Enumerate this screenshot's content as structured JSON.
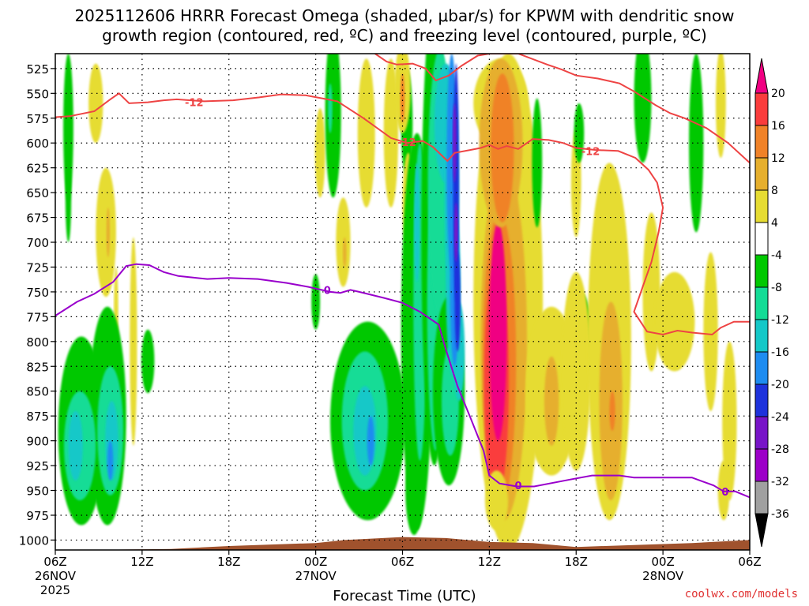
{
  "chart_data": {
    "type": "heatmap",
    "title_line1": "2025112606 HRRR Forecast Omega (shaded, μbar/s) for KPWM with dendritic snow",
    "title_line2": "growth region (contoured, red, ºC) and freezing level (contoured, purple, ºC)",
    "xlabel": "Forecast Time (UTC)",
    "credit": "coolwx.com/models",
    "x_range_hours": [
      0,
      48
    ],
    "y_range_mb": [
      1010,
      510
    ],
    "y_ticks": [
      {
        "value": 525,
        "label": "525"
      },
      {
        "value": 550,
        "label": "550"
      },
      {
        "value": 575,
        "label": "575"
      },
      {
        "value": 600,
        "label": "600"
      },
      {
        "value": 625,
        "label": "625"
      },
      {
        "value": 650,
        "label": "650"
      },
      {
        "value": 675,
        "label": "675"
      },
      {
        "value": 700,
        "label": "700"
      },
      {
        "value": 725,
        "label": "725"
      },
      {
        "value": 750,
        "label": "750"
      },
      {
        "value": 775,
        "label": "775"
      },
      {
        "value": 800,
        "label": "800"
      },
      {
        "value": 825,
        "label": "825"
      },
      {
        "value": 850,
        "label": "850"
      },
      {
        "value": 875,
        "label": "875"
      },
      {
        "value": 900,
        "label": "900"
      },
      {
        "value": 925,
        "label": "925"
      },
      {
        "value": 950,
        "label": "950"
      },
      {
        "value": 975,
        "label": "975"
      },
      {
        "value": 1000,
        "label": "1000"
      }
    ],
    "x_ticks": [
      {
        "hour": 0,
        "label": "06Z",
        "date": "26NOV",
        "year": "2025"
      },
      {
        "hour": 6,
        "label": "12Z"
      },
      {
        "hour": 12,
        "label": "18Z"
      },
      {
        "hour": 18,
        "label": "00Z",
        "date": "27NOV"
      },
      {
        "hour": 24,
        "label": "06Z"
      },
      {
        "hour": 30,
        "label": "12Z"
      },
      {
        "hour": 36,
        "label": "18Z"
      },
      {
        "hour": 42,
        "label": "00Z",
        "date": "28NOV"
      },
      {
        "hour": 48,
        "label": "06Z"
      }
    ],
    "colorbar": {
      "bins": [
        {
          "lo": -40,
          "hi": -36,
          "color": "#000000"
        },
        {
          "lo": -36,
          "hi": -32,
          "color": "#a0a0a0"
        },
        {
          "lo": -32,
          "hi": -28,
          "color": "#9c00c8"
        },
        {
          "lo": -28,
          "hi": -24,
          "color": "#7814c8"
        },
        {
          "lo": -24,
          "hi": -20,
          "color": "#1e32dc"
        },
        {
          "lo": -20,
          "hi": -16,
          "color": "#1e8cf0"
        },
        {
          "lo": -16,
          "hi": -12,
          "color": "#14c8c8"
        },
        {
          "lo": -12,
          "hi": -8,
          "color": "#14dc96"
        },
        {
          "lo": -8,
          "hi": -4,
          "color": "#00c800"
        },
        {
          "lo": -4,
          "hi": 4,
          "color": "#ffffff"
        },
        {
          "lo": 4,
          "hi": 8,
          "color": "#e6dc32"
        },
        {
          "lo": 8,
          "hi": 12,
          "color": "#e6af2d"
        },
        {
          "lo": 12,
          "hi": 16,
          "color": "#f08228"
        },
        {
          "lo": 16,
          "hi": 20,
          "color": "#fa3c3c"
        },
        {
          "lo": 20,
          "hi": 24,
          "color": "#f00082"
        }
      ],
      "labels": [
        "20",
        "16",
        "12",
        "8",
        "4",
        "-4",
        "-8",
        "-12",
        "-16",
        "-20",
        "-24",
        "-28",
        "-32",
        "-36"
      ]
    },
    "omega_cells": [
      {
        "x": 0.9,
        "p": 585,
        "rx": 0.35,
        "rp": 75,
        "v": -5
      },
      {
        "x": 0.9,
        "p": 655,
        "rx": 0.2,
        "rp": 45,
        "v": -5
      },
      {
        "x": 2.8,
        "p": 560,
        "rx": 0.5,
        "rp": 40,
        "v": 5
      },
      {
        "x": 3.5,
        "p": 690,
        "rx": 0.7,
        "rp": 65,
        "v": 5
      },
      {
        "x": 3.65,
        "p": 690,
        "rx": 0.12,
        "rp": 25,
        "v": 9
      },
      {
        "x": 4.2,
        "p": 770,
        "rx": 0.15,
        "rp": 45,
        "v": 5
      },
      {
        "x": 5.4,
        "p": 800,
        "rx": 0.25,
        "rp": 105,
        "v": 5
      },
      {
        "x": 6.4,
        "p": 820,
        "rx": 0.45,
        "rp": 32,
        "v": -5
      },
      {
        "x": 1.8,
        "p": 890,
        "rx": 1.6,
        "rp": 95,
        "v": -6
      },
      {
        "x": 3.6,
        "p": 875,
        "rx": 1.3,
        "rp": 110,
        "v": -6
      },
      {
        "x": 1.7,
        "p": 905,
        "rx": 1.1,
        "rp": 55,
        "v": -10
      },
      {
        "x": 3.8,
        "p": 890,
        "rx": 0.9,
        "rp": 65,
        "v": -10
      },
      {
        "x": 1.4,
        "p": 905,
        "rx": 0.5,
        "rp": 35,
        "v": -14
      },
      {
        "x": 3.9,
        "p": 900,
        "rx": 0.45,
        "rp": 40,
        "v": -14
      },
      {
        "x": 3.8,
        "p": 920,
        "rx": 0.2,
        "rp": 20,
        "v": -18
      },
      {
        "x": 18.3,
        "p": 610,
        "rx": 0.35,
        "rp": 45,
        "v": 5
      },
      {
        "x": 19.2,
        "p": 570,
        "rx": 0.55,
        "rp": 85,
        "v": -5
      },
      {
        "x": 19.0,
        "p": 565,
        "rx": 0.15,
        "rp": 25,
        "v": -10
      },
      {
        "x": 19.9,
        "p": 700,
        "rx": 0.5,
        "rp": 45,
        "v": 5
      },
      {
        "x": 20.0,
        "p": 710,
        "rx": 0.12,
        "rp": 15,
        "v": 9
      },
      {
        "x": 18.0,
        "p": 760,
        "rx": 0.3,
        "rp": 28,
        "v": -5
      },
      {
        "x": 21.5,
        "p": 590,
        "rx": 0.6,
        "rp": 75,
        "v": 5
      },
      {
        "x": 23.2,
        "p": 590,
        "rx": 0.5,
        "rp": 75,
        "v": 5
      },
      {
        "x": 21.6,
        "p": 880,
        "rx": 2.6,
        "rp": 100,
        "v": -6
      },
      {
        "x": 21.4,
        "p": 880,
        "rx": 1.6,
        "rp": 70,
        "v": -10
      },
      {
        "x": 21.4,
        "p": 890,
        "rx": 0.8,
        "rp": 45,
        "v": -14
      },
      {
        "x": 21.8,
        "p": 900,
        "rx": 0.25,
        "rp": 25,
        "v": -18
      },
      {
        "x": 24.3,
        "p": 580,
        "rx": 0.4,
        "rp": 55,
        "v": -5
      },
      {
        "x": 24.0,
        "p": 545,
        "rx": 0.55,
        "rp": 45,
        "v": 5
      },
      {
        "x": 24.0,
        "p": 555,
        "rx": 0.15,
        "rp": 25,
        "v": 13
      },
      {
        "x": 24.4,
        "p": 660,
        "rx": 0.4,
        "rp": 50,
        "v": 5
      },
      {
        "x": 25.0,
        "p": 790,
        "rx": 1.1,
        "rp": 200,
        "v": -6
      },
      {
        "x": 24.8,
        "p": 950,
        "rx": 0.6,
        "rp": 45,
        "v": -5
      },
      {
        "x": 25.2,
        "p": 760,
        "rx": 0.45,
        "rp": 160,
        "v": -10
      },
      {
        "x": 25.0,
        "p": 680,
        "rx": 0.2,
        "rp": 60,
        "v": -14
      },
      {
        "x": 26.2,
        "p": 690,
        "rx": 0.9,
        "rp": 235,
        "v": -6
      },
      {
        "x": 26.3,
        "p": 760,
        "rx": 0.6,
        "rp": 150,
        "v": -10
      },
      {
        "x": 26.6,
        "p": 640,
        "rx": 0.85,
        "rp": 135,
        "v": -10
      },
      {
        "x": 27.2,
        "p": 850,
        "rx": 1.1,
        "rp": 95,
        "v": -6
      },
      {
        "x": 27.3,
        "p": 860,
        "rx": 0.6,
        "rp": 55,
        "v": -10
      },
      {
        "x": 27.0,
        "p": 580,
        "rx": 0.8,
        "rp": 60,
        "v": -14
      },
      {
        "x": 27.4,
        "p": 650,
        "rx": 0.5,
        "rp": 120,
        "v": -14
      },
      {
        "x": 27.5,
        "p": 745,
        "rx": 0.5,
        "rp": 90,
        "v": -14
      },
      {
        "x": 27.9,
        "p": 810,
        "rx": 0.4,
        "rp": 50,
        "v": -14
      },
      {
        "x": 27.4,
        "p": 620,
        "rx": 0.35,
        "rp": 110,
        "v": -18
      },
      {
        "x": 27.6,
        "p": 740,
        "rx": 0.32,
        "rp": 85,
        "v": -18
      },
      {
        "x": 27.7,
        "p": 640,
        "rx": 0.2,
        "rp": 120,
        "v": -22
      },
      {
        "x": 27.8,
        "p": 760,
        "rx": 0.2,
        "rp": 50,
        "v": -22
      },
      {
        "x": 27.6,
        "p": 600,
        "rx": 0.12,
        "rp": 40,
        "v": -26
      },
      {
        "x": 27.7,
        "p": 690,
        "rx": 0.12,
        "rp": 30,
        "v": -26
      },
      {
        "x": 31.3,
        "p": 760,
        "rx": 2.4,
        "rp": 250,
        "v": 5
      },
      {
        "x": 31.0,
        "p": 800,
        "rx": 1.6,
        "rp": 180,
        "v": 9
      },
      {
        "x": 30.7,
        "p": 820,
        "rx": 1.15,
        "rp": 150,
        "v": 13
      },
      {
        "x": 30.5,
        "p": 840,
        "rx": 0.85,
        "rp": 120,
        "v": 17
      },
      {
        "x": 30.6,
        "p": 790,
        "rx": 0.6,
        "rp": 110,
        "v": 22
      },
      {
        "x": 30.8,
        "p": 560,
        "rx": 1.9,
        "rp": 45,
        "v": 5
      },
      {
        "x": 30.8,
        "p": 600,
        "rx": 1.5,
        "rp": 85,
        "v": 9
      },
      {
        "x": 30.9,
        "p": 605,
        "rx": 0.8,
        "rp": 75,
        "v": 13
      },
      {
        "x": 30.5,
        "p": 960,
        "rx": 0.8,
        "rp": 30,
        "v": 5
      },
      {
        "x": 33.3,
        "p": 620,
        "rx": 0.35,
        "rp": 65,
        "v": -5
      },
      {
        "x": 34.3,
        "p": 850,
        "rx": 1.8,
        "rp": 85,
        "v": 5
      },
      {
        "x": 34.3,
        "p": 860,
        "rx": 0.5,
        "rp": 45,
        "v": 9
      },
      {
        "x": 36.0,
        "p": 640,
        "rx": 0.35,
        "rp": 55,
        "v": 5
      },
      {
        "x": 36.2,
        "p": 590,
        "rx": 0.35,
        "rp": 30,
        "v": -5
      },
      {
        "x": 36.3,
        "p": 800,
        "rx": 0.8,
        "rp": 50,
        "v": -5
      },
      {
        "x": 36.0,
        "p": 830,
        "rx": 1.0,
        "rp": 100,
        "v": 5
      },
      {
        "x": 38.3,
        "p": 800,
        "rx": 1.5,
        "rp": 180,
        "v": 5
      },
      {
        "x": 38.4,
        "p": 860,
        "rx": 0.8,
        "rp": 100,
        "v": 9
      },
      {
        "x": 38.5,
        "p": 870,
        "rx": 0.2,
        "rp": 20,
        "v": 13
      },
      {
        "x": 41.2,
        "p": 750,
        "rx": 0.6,
        "rp": 80,
        "v": 5
      },
      {
        "x": 40.6,
        "p": 555,
        "rx": 0.6,
        "rp": 65,
        "v": -5
      },
      {
        "x": 44.3,
        "p": 600,
        "rx": 0.5,
        "rp": 90,
        "v": -5
      },
      {
        "x": 46.0,
        "p": 560,
        "rx": 0.35,
        "rp": 55,
        "v": 5
      },
      {
        "x": 42.8,
        "p": 780,
        "rx": 1.4,
        "rp": 50,
        "v": 5
      },
      {
        "x": 45.3,
        "p": 790,
        "rx": 0.5,
        "rp": 80,
        "v": 5
      },
      {
        "x": 46.6,
        "p": 880,
        "rx": 0.5,
        "rp": 80,
        "v": 5
      },
      {
        "x": 46.2,
        "p": 950,
        "rx": 0.4,
        "rp": 30,
        "v": 5
      }
    ],
    "isotherm_minus12": {
      "label": "-12",
      "points": [
        [
          0,
          574
        ],
        [
          1,
          573
        ],
        [
          2.7,
          568
        ],
        [
          3.8,
          556
        ],
        [
          4.4,
          550
        ],
        [
          5.1,
          560
        ],
        [
          6.4,
          559
        ],
        [
          7.5,
          557
        ],
        [
          8.4,
          556
        ],
        [
          10.3,
          558
        ],
        [
          12.3,
          557
        ],
        [
          14.1,
          554
        ],
        [
          15.6,
          551
        ],
        [
          17.3,
          552
        ],
        [
          18.8,
          556
        ],
        [
          19.5,
          558
        ],
        [
          21.3,
          575
        ],
        [
          23.2,
          595
        ],
        [
          24.3,
          600
        ],
        [
          25.4,
          598
        ],
        [
          26.1,
          604
        ],
        [
          27.1,
          618
        ],
        [
          27.6,
          610
        ],
        [
          28.7,
          607
        ],
        [
          29.4,
          605
        ],
        [
          30.0,
          602
        ],
        [
          30.6,
          606
        ],
        [
          31.2,
          603
        ],
        [
          32.0,
          606
        ],
        [
          33.0,
          596
        ],
        [
          34.1,
          597
        ],
        [
          35.1,
          600
        ],
        [
          36.0,
          605
        ],
        [
          37.3,
          607
        ],
        [
          38.9,
          608
        ],
        [
          40.1,
          615
        ],
        [
          41.0,
          627
        ],
        [
          41.6,
          640
        ],
        [
          42.0,
          665
        ],
        [
          41.7,
          690
        ],
        [
          41.2,
          720
        ],
        [
          40.6,
          745
        ],
        [
          40.0,
          770
        ],
        [
          40.9,
          790
        ],
        [
          42.0,
          793
        ],
        [
          43.0,
          789
        ],
        [
          44.0,
          791
        ],
        [
          45.4,
          793
        ],
        [
          46.0,
          786
        ],
        [
          46.9,
          780
        ],
        [
          48,
          780
        ]
      ],
      "label_positions": [
        [
          9.6,
          559
        ],
        [
          24.3,
          599
        ],
        [
          37.0,
          608
        ]
      ]
    },
    "isotherm_minus12_top": {
      "points": [
        [
          22.1,
          510
        ],
        [
          22.9,
          518
        ],
        [
          23.6,
          521
        ],
        [
          24.7,
          520
        ],
        [
          25.6,
          525
        ],
        [
          26.3,
          537
        ],
        [
          27.2,
          532
        ],
        [
          28.1,
          522
        ],
        [
          29.2,
          512
        ],
        [
          30.0,
          510
        ],
        [
          32.0,
          510
        ],
        [
          34.0,
          521
        ],
        [
          35.0,
          526
        ],
        [
          36.0,
          532
        ],
        [
          37.5,
          535
        ],
        [
          39.0,
          540
        ],
        [
          40.0,
          548
        ],
        [
          41.5,
          562
        ],
        [
          42.5,
          570
        ],
        [
          43.5,
          575
        ],
        [
          45.0,
          585
        ],
        [
          46.5,
          600
        ],
        [
          48,
          620
        ]
      ]
    },
    "freezing_level": {
      "label": "0",
      "points": [
        [
          0,
          774
        ],
        [
          1.5,
          760
        ],
        [
          2.7,
          752
        ],
        [
          4.0,
          740
        ],
        [
          4.9,
          724
        ],
        [
          5.6,
          722
        ],
        [
          6.5,
          723
        ],
        [
          7.5,
          730
        ],
        [
          8.5,
          734
        ],
        [
          10.5,
          737
        ],
        [
          12.0,
          736
        ],
        [
          14.0,
          737
        ],
        [
          16.0,
          741
        ],
        [
          17.5,
          745
        ],
        [
          18.4,
          748
        ],
        [
          19.0,
          750
        ],
        [
          19.7,
          751
        ],
        [
          20.4,
          748
        ],
        [
          21.0,
          750
        ],
        [
          22.7,
          756
        ],
        [
          24.0,
          761
        ],
        [
          25.2,
          770
        ],
        [
          26.5,
          783
        ],
        [
          27.0,
          808
        ],
        [
          27.8,
          845
        ],
        [
          28.7,
          877
        ],
        [
          29.6,
          910
        ],
        [
          30.0,
          935
        ],
        [
          30.7,
          943
        ],
        [
          31.9,
          946
        ],
        [
          33.1,
          946
        ],
        [
          35.6,
          939
        ],
        [
          37.1,
          935
        ],
        [
          39.0,
          935
        ],
        [
          40.0,
          937
        ],
        [
          42.0,
          937
        ],
        [
          44.0,
          937
        ],
        [
          45.5,
          945
        ],
        [
          46.2,
          951
        ],
        [
          47.0,
          951
        ],
        [
          48,
          957
        ]
      ],
      "label_positions": [
        [
          18.8,
          748
        ],
        [
          32.0,
          945
        ],
        [
          46.3,
          951
        ]
      ]
    },
    "terrain_surface_mb": [
      [
        0,
        1012
      ],
      [
        2,
        1010
      ],
      [
        8,
        1009
      ],
      [
        12,
        1006
      ],
      [
        18,
        1003
      ],
      [
        20,
        1000
      ],
      [
        24,
        997
      ],
      [
        27,
        998
      ],
      [
        30,
        1002
      ],
      [
        33,
        1003
      ],
      [
        36,
        1007
      ],
      [
        40,
        1005
      ],
      [
        44,
        1003
      ],
      [
        48,
        1000
      ]
    ]
  }
}
